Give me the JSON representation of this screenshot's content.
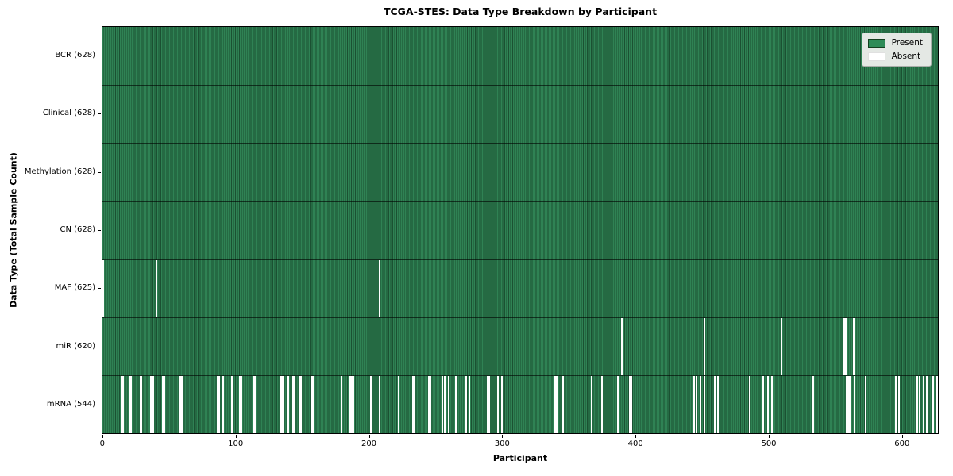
{
  "title": "TCGA-STES: Data Type Breakdown by Participant",
  "legend": {
    "present": "Present",
    "absent": "Absent"
  },
  "colors": {
    "present": "#2e8b57",
    "present_stripe_light": "#2f8254",
    "present_stripe_dark": "#1b5132",
    "absent": "#ffffff",
    "edge": "#000000",
    "legend_bg": "#e4e8e4"
  },
  "chart_data": {
    "type": "heatmap",
    "title": "TCGA-STES: Data Type Breakdown by Participant",
    "xlabel": "Participant",
    "ylabel": "Data Type (Total Sample Count)",
    "legend": [
      "Present",
      "Absent"
    ],
    "legend_position": "upper right",
    "n_participants": 628,
    "x_ticks": [
      0,
      100,
      200,
      300,
      400,
      500,
      600
    ],
    "xlim": [
      -0.5,
      627.5
    ],
    "rows": [
      {
        "label": "BCR (628)",
        "data_type": "BCR",
        "present_count": 628,
        "absent_count": 0,
        "absent_participants": []
      },
      {
        "label": "Clinical (628)",
        "data_type": "Clinical",
        "present_count": 628,
        "absent_count": 0,
        "absent_participants": []
      },
      {
        "label": "Methylation (628)",
        "data_type": "Methylation",
        "present_count": 628,
        "absent_count": 0,
        "absent_participants": []
      },
      {
        "label": "CN (628)",
        "data_type": "CN",
        "present_count": 628,
        "absent_count": 0,
        "absent_participants": []
      },
      {
        "label": "MAF (625)",
        "data_type": "MAF",
        "present_count": 625,
        "absent_count": 3,
        "absent_participants": [
          0,
          40,
          208
        ]
      },
      {
        "label": "miR (620)",
        "data_type": "miR",
        "present_count": 620,
        "absent_count": 8,
        "absent_participants": [
          390,
          452,
          510,
          557,
          558,
          559,
          564,
          565
        ]
      },
      {
        "label": "mRNA (544)",
        "data_type": "mRNA",
        "present_count": 544,
        "absent_count": 84,
        "absent_participants": [
          14,
          15,
          20,
          21,
          28,
          29,
          36,
          38,
          45,
          46,
          58,
          59,
          86,
          87,
          90,
          97,
          103,
          104,
          113,
          114,
          134,
          135,
          139,
          143,
          144,
          148,
          149,
          157,
          158,
          179,
          186,
          187,
          188,
          201,
          202,
          208,
          222,
          233,
          234,
          245,
          246,
          255,
          257,
          260,
          265,
          266,
          273,
          275,
          289,
          290,
          297,
          300,
          340,
          341,
          346,
          367,
          375,
          387,
          396,
          397,
          444,
          446,
          449,
          452,
          460,
          462,
          486,
          496,
          500,
          503,
          534,
          559,
          560,
          561,
          565,
          573,
          596,
          598,
          612,
          614,
          617,
          619,
          624,
          627
        ]
      }
    ]
  }
}
